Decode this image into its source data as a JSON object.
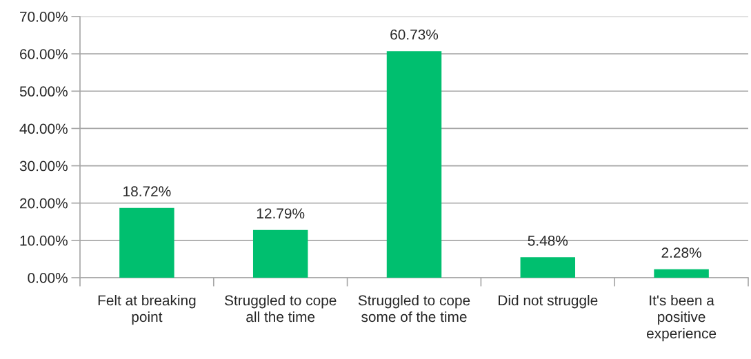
{
  "chart_data": {
    "type": "bar",
    "categories": [
      "Felt at breaking point",
      "Struggled to cope all the time",
      "Struggled to cope some of the time",
      "Did not struggle",
      "It's been a positive experience"
    ],
    "values": [
      18.72,
      12.79,
      60.73,
      5.48,
      2.28
    ],
    "value_labels": [
      "18.72%",
      "12.79%",
      "60.73%",
      "5.48%",
      "2.28%"
    ],
    "color": "#00bf6f",
    "ylim": [
      0,
      70
    ],
    "yticks": [
      {
        "value": 0,
        "label": "0.00%"
      },
      {
        "value": 10,
        "label": "10.00%"
      },
      {
        "value": 20,
        "label": "20.00%"
      },
      {
        "value": 30,
        "label": "30.00%"
      },
      {
        "value": 40,
        "label": "40.00%"
      },
      {
        "value": 50,
        "label": "50.00%"
      },
      {
        "value": 60,
        "label": "60.00%"
      },
      {
        "value": 70,
        "label": "70.00%"
      }
    ],
    "grid": "y"
  }
}
